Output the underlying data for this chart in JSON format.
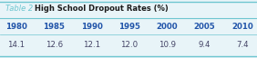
{
  "title_prefix": "Table 2",
  "title_main": "High School Dropout Rates (%)",
  "years": [
    "1980",
    "1985",
    "1990",
    "1995",
    "2000",
    "2005",
    "2010"
  ],
  "values": [
    "14.1",
    "12.6",
    "12.1",
    "12.0",
    "10.9",
    "9.4",
    "7.4"
  ],
  "title_prefix_color": "#6ec6d0",
  "title_main_color": "#1a1a1a",
  "header_color": "#2255aa",
  "value_color": "#444466",
  "background_color": "#e8f4f8",
  "border_color": "#6ec6d0",
  "title_fontsize": 6.0,
  "header_fontsize": 6.2,
  "value_fontsize": 6.2
}
